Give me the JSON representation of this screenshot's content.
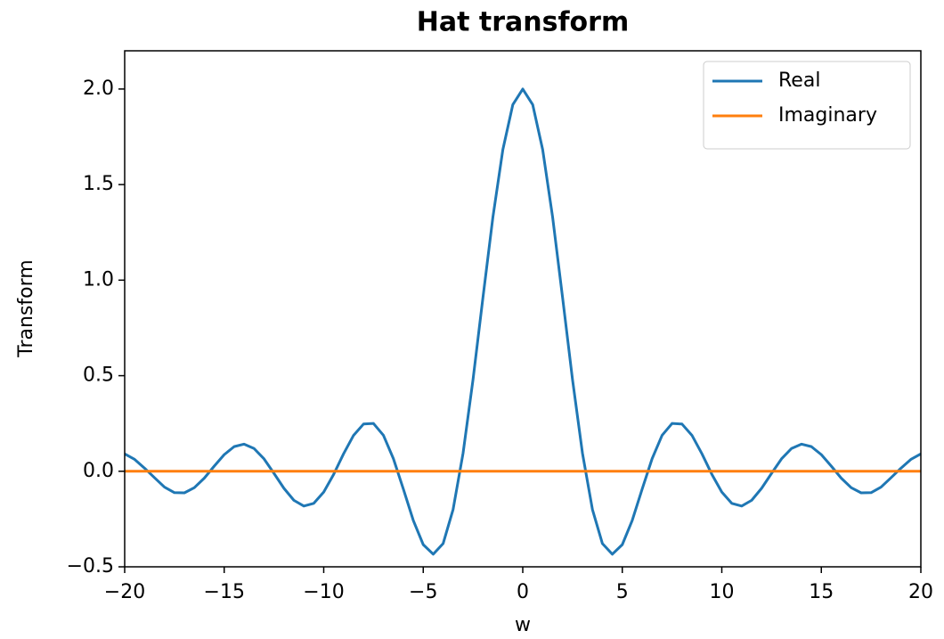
{
  "chart_data": {
    "type": "line",
    "title": "Hat transform",
    "xlabel": "w",
    "ylabel": "Transform",
    "x": [
      -20,
      -19.5,
      -19,
      -18.5,
      -18,
      -17.5,
      -17,
      -16.5,
      -16,
      -15.5,
      -15,
      -14.5,
      -14,
      -13.5,
      -13,
      -12.5,
      -12,
      -11.5,
      -11,
      -10.5,
      -10,
      -9.5,
      -9,
      -8.5,
      -8,
      -7.5,
      -7,
      -6.5,
      -6,
      -5.5,
      -5,
      -4.5,
      -4,
      -3.5,
      -3,
      -2.5,
      -2,
      -1.5,
      -1,
      -0.5,
      0,
      0.5,
      1,
      1.5,
      2,
      2.5,
      3,
      3.5,
      4,
      4.5,
      5,
      5.5,
      6,
      6.5,
      7,
      7.5,
      8,
      8.5,
      9,
      9.5,
      10,
      10.5,
      11,
      11.5,
      12,
      12.5,
      13,
      13.5,
      14,
      14.5,
      15,
      15.5,
      16,
      16.5,
      17,
      17.5,
      18,
      18.5,
      19,
      19.5,
      20
    ],
    "series": [
      {
        "name": "Real",
        "color": "#1f77b4",
        "values": [
          0.091,
          0.062,
          0.016,
          -0.034,
          -0.083,
          -0.112,
          -0.113,
          -0.086,
          -0.036,
          0.027,
          0.087,
          0.129,
          0.142,
          0.119,
          0.065,
          -0.011,
          -0.089,
          -0.152,
          -0.182,
          -0.168,
          -0.109,
          -0.016,
          0.092,
          0.188,
          0.247,
          0.25,
          0.188,
          0.066,
          -0.093,
          -0.257,
          -0.384,
          -0.434,
          -0.378,
          -0.2,
          0.094,
          0.479,
          0.909,
          1.33,
          1.683,
          1.918,
          2,
          1.918,
          1.683,
          1.33,
          0.909,
          0.479,
          0.094,
          -0.2,
          -0.378,
          -0.434,
          -0.384,
          -0.257,
          -0.093,
          0.066,
          0.188,
          0.25,
          0.247,
          0.188,
          0.092,
          -0.016,
          -0.109,
          -0.168,
          -0.182,
          -0.152,
          -0.089,
          -0.011,
          0.065,
          0.119,
          0.142,
          0.129,
          0.087,
          0.027,
          -0.036,
          -0.086,
          -0.113,
          -0.112,
          -0.083,
          -0.034,
          0.016,
          0.062,
          0.091
        ]
      },
      {
        "name": "Imaginary",
        "color": "#ff7f0e",
        "values": [
          0,
          0,
          0,
          0,
          0,
          0,
          0,
          0,
          0,
          0,
          0,
          0,
          0,
          0,
          0,
          0,
          0,
          0,
          0,
          0,
          0,
          0,
          0,
          0,
          0,
          0,
          0,
          0,
          0,
          0,
          0,
          0,
          0,
          0,
          0,
          0,
          0,
          0,
          0,
          0,
          0,
          0,
          0,
          0,
          0,
          0,
          0,
          0,
          0,
          0,
          0,
          0,
          0,
          0,
          0,
          0,
          0,
          0,
          0,
          0,
          0,
          0,
          0,
          0,
          0,
          0,
          0,
          0,
          0,
          0,
          0,
          0,
          0,
          0,
          0,
          0,
          0,
          0,
          0,
          0,
          0
        ]
      }
    ],
    "xlim": [
      -20,
      20
    ],
    "xticks": [
      {
        "value": -20,
        "label": "−20"
      },
      {
        "value": -15,
        "label": "−15"
      },
      {
        "value": -10,
        "label": "−10"
      },
      {
        "value": -5,
        "label": "−5"
      },
      0,
      5,
      10,
      15,
      20
    ],
    "ylim": [
      -0.5,
      2.2
    ],
    "yticks": [
      {
        "value": -0.5,
        "label": "−0.5"
      },
      {
        "value": 0,
        "label": "0.0"
      },
      {
        "value": 0.5,
        "label": "0.5"
      },
      {
        "value": 1,
        "label": "1.0"
      },
      {
        "value": 1.5,
        "label": "1.5"
      },
      {
        "value": 2,
        "label": "2.0"
      }
    ],
    "legend": "upper right",
    "grid": false
  }
}
